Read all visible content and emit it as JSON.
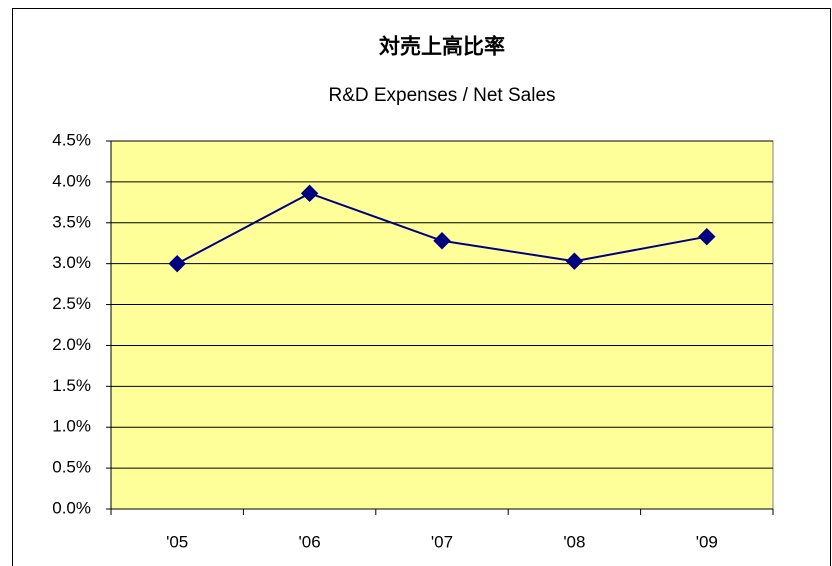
{
  "chart_data": {
    "type": "line",
    "title": "対売上高比率",
    "subtitle": "R&D Expenses / Net Sales",
    "categories": [
      "'05",
      "'06",
      "'07",
      "'08",
      "'09"
    ],
    "series": [
      {
        "name": "R&D Expenses / Net Sales",
        "color": "#000080",
        "values": [
          3.0,
          3.86,
          3.28,
          3.03,
          3.33
        ]
      }
    ],
    "ylim": [
      0,
      4.5
    ],
    "yticks": [
      {
        "value": 0,
        "label": "0.0%"
      },
      {
        "value": 0.5,
        "label": "0.5%"
      },
      {
        "value": 1.0,
        "label": "1.0%"
      },
      {
        "value": 1.5,
        "label": "1.5%"
      },
      {
        "value": 2.0,
        "label": "2.0%"
      },
      {
        "value": 2.5,
        "label": "2.5%"
      },
      {
        "value": 3.0,
        "label": "3.0%"
      },
      {
        "value": 3.5,
        "label": "3.5%"
      },
      {
        "value": 4.0,
        "label": "4.0%"
      },
      {
        "value": 4.5,
        "label": "4.5%"
      }
    ],
    "grid": true,
    "plot_background": "#ffff99"
  }
}
